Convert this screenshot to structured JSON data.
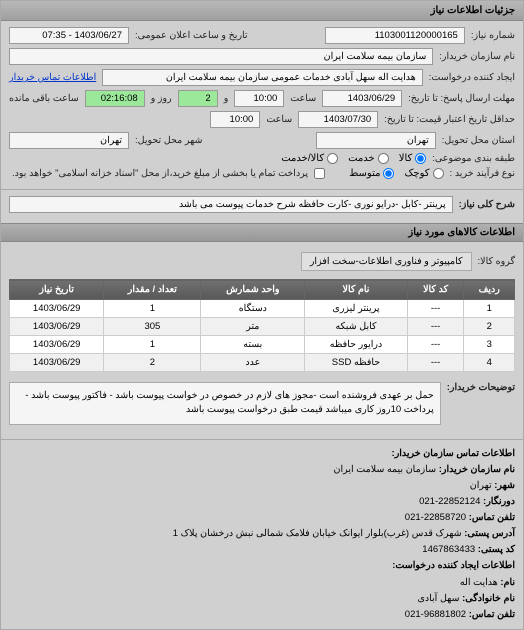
{
  "header": {
    "title": "جزئیات اطلاعات نیاز"
  },
  "top": {
    "request_number_label": "شماره نیاز:",
    "request_number": "1103001120000165",
    "public_announce_label": "تاریخ و ساعت اعلان عمومی:",
    "public_announce": "1403/06/27 - 07:35",
    "buyer_org_label": "نام سازمان خریدار:",
    "buyer_org": "سازمان بیمه سلامت ایران",
    "creator_label": "ایجاد کننده درخواست:",
    "creator": "هدایت اله سهل آبادی خدمات عمومی سازمان بیمه سلامت ایران",
    "contact_link": "اطلاعات تماس خریدار",
    "deadline_label": "مهلت ارسال پاسخ: تا تاریخ:",
    "deadline_date": "1403/06/29",
    "deadline_time_label": "ساعت",
    "deadline_time": "10:00",
    "remain_label1": "و",
    "remain_days": "2",
    "remain_label2": "روز و",
    "remain_time": "02:16:08",
    "remain_label3": "ساعت باقی مانده",
    "validity_label": "حداقل تاریخ اعتبار قیمت: تا تاریخ:",
    "validity_date": "1403/07/30",
    "validity_time_label": "ساعت",
    "validity_time": "10:00",
    "delivery_state_label": "استان محل تحویل:",
    "delivery_state": "تهران",
    "delivery_city_label": "شهر محل تحویل:",
    "delivery_city": "تهران",
    "category_label": "طبقه بندی موضوعی:",
    "cat_goods": "کالا",
    "cat_service": "خدمت",
    "cat_goods_service": "کالا/خدمت",
    "buy_type_label": "نوع فرآیند خرید :",
    "buy_type_small": "کوچک",
    "buy_type_medium": "متوسط",
    "buy_trust_note": "پرداخت تمام یا بخشی از مبلغ خرید،از محل \"اسناد خزانه اسلامی\" خواهد بود."
  },
  "need": {
    "title_label": "شرح کلی نیاز:",
    "title_value": "پرینتر -کابل -درایو نوری -کارت حافظه شرح خدمات پیوست می باشد"
  },
  "items_section": {
    "header": "اطلاعات کالاهای مورد نیاز",
    "group_label": "گروه کالا:",
    "group_value": "کامپیوتر و فناوری اطلاعات-سخت افزار"
  },
  "table": {
    "columns": [
      "ردیف",
      "کد کالا",
      "نام کالا",
      "واحد شمارش",
      "تعداد / مقدار",
      "تاریخ نیاز"
    ],
    "rows": [
      [
        "1",
        "---",
        "پرینتر لیزری",
        "دستگاه",
        "1",
        "1403/06/29"
      ],
      [
        "2",
        "---",
        "کابل شبکه",
        "متر",
        "305",
        "1403/06/29"
      ],
      [
        "3",
        "---",
        "درایور حافظه",
        "بسته",
        "1",
        "1403/06/29"
      ],
      [
        "4",
        "---",
        "حافظه SSD",
        "عدد",
        "2",
        "1403/06/29"
      ]
    ]
  },
  "description": {
    "label": "توضیحات خریدار:",
    "text": "حمل بر عهدی فروشنده است -مجوز های لازم در خصوص در خواست پیوست باشد - فاکتور پیوست باشد - پرداخت 10روز کاری میباشد قیمت طبق درخواست پیوست باشد"
  },
  "contact": {
    "header": "اطلاعات تماس سازمان خریدار:",
    "org_name_label": "نام سازمان خریدار:",
    "org_name": "سازمان بیمه سلامت ایران",
    "city_label": "شهر:",
    "city": "تهران",
    "fax_label": "دورنگار:",
    "fax": "22852124-021",
    "phone_label": "تلفن تماس:",
    "phone": "22858720-021",
    "address_label": "آدرس پستی:",
    "address": "شهرک قدس (غرب)بلوار ایوانک خیابان فلامک شمالی نبش درخشان پلاک 1",
    "postcode_label": "کد پستی:",
    "postcode": "1467863433",
    "creator_header": "اطلاعات ایجاد کننده درخواست:",
    "name_label": "نام:",
    "name": "هدایت اله",
    "family_label": "نام خانوادگی:",
    "family": "سهل آبادی",
    "contact_phone_label": "تلفن تماس:",
    "contact_phone": "96881802-021"
  }
}
